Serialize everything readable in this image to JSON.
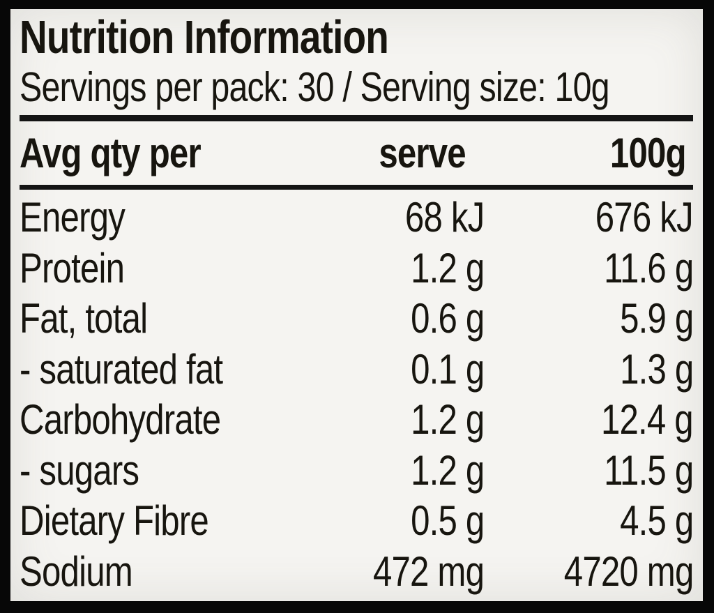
{
  "panel": {
    "title": "Nutrition Information",
    "servings_line": "Servings per pack: 30 / Serving size: 10g"
  },
  "table": {
    "header": {
      "label": "Avg qty per",
      "serve": "serve",
      "per100": "100g"
    },
    "rows": [
      {
        "label": "Energy",
        "serve": "68 kJ",
        "per100": "676 kJ"
      },
      {
        "label": "Protein",
        "serve": "1.2 g",
        "per100": "11.6 g"
      },
      {
        "label": "Fat, total",
        "serve": "0.6 g",
        "per100": "5.9 g"
      },
      {
        "label": "- saturated fat",
        "serve": "0.1 g",
        "per100": "1.3 g"
      },
      {
        "label": "Carbohydrate",
        "serve": "1.2 g",
        "per100": "12.4 g"
      },
      {
        "label": "- sugars",
        "serve": "1.2 g",
        "per100": "11.5 g"
      },
      {
        "label": "Dietary Fibre",
        "serve": "0.5 g",
        "per100": "4.5 g"
      },
      {
        "label": "Sodium",
        "serve": "472 mg",
        "per100": "4720 mg"
      }
    ]
  },
  "colors": {
    "frame": "#070707",
    "panel": "#f5f4f1",
    "text": "#17150f",
    "rule": "#141414"
  }
}
